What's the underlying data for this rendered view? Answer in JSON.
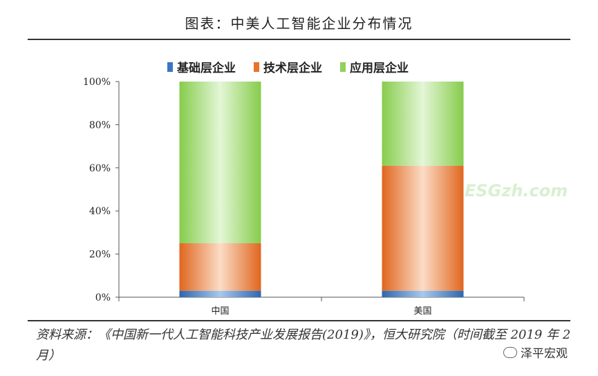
{
  "title": "图表：中美人工智能企业分布情况",
  "source": "资料来源：《中国新一代人工智能科技产业发展报告(2019)》，恒大研究院（时间截至 2019 年 2 月）",
  "watermark": "ESGzh.com",
  "brand": "泽平宏观",
  "colors": {
    "foundation": "#3a77c4",
    "technology": "#e8732a",
    "application": "#8fd25a"
  },
  "chart_data": {
    "type": "bar",
    "stacked": true,
    "categories": [
      "中国",
      "美国"
    ],
    "series": [
      {
        "name": "基础层企业",
        "values": [
          3,
          3
        ]
      },
      {
        "name": "技术层企业",
        "values": [
          22,
          58
        ]
      },
      {
        "name": "应用层企业",
        "values": [
          75,
          39
        ]
      }
    ],
    "yticks": [
      "0%",
      "20%",
      "40%",
      "60%",
      "80%",
      "100%"
    ],
    "ylim": [
      0,
      100
    ],
    "legend": "top"
  }
}
